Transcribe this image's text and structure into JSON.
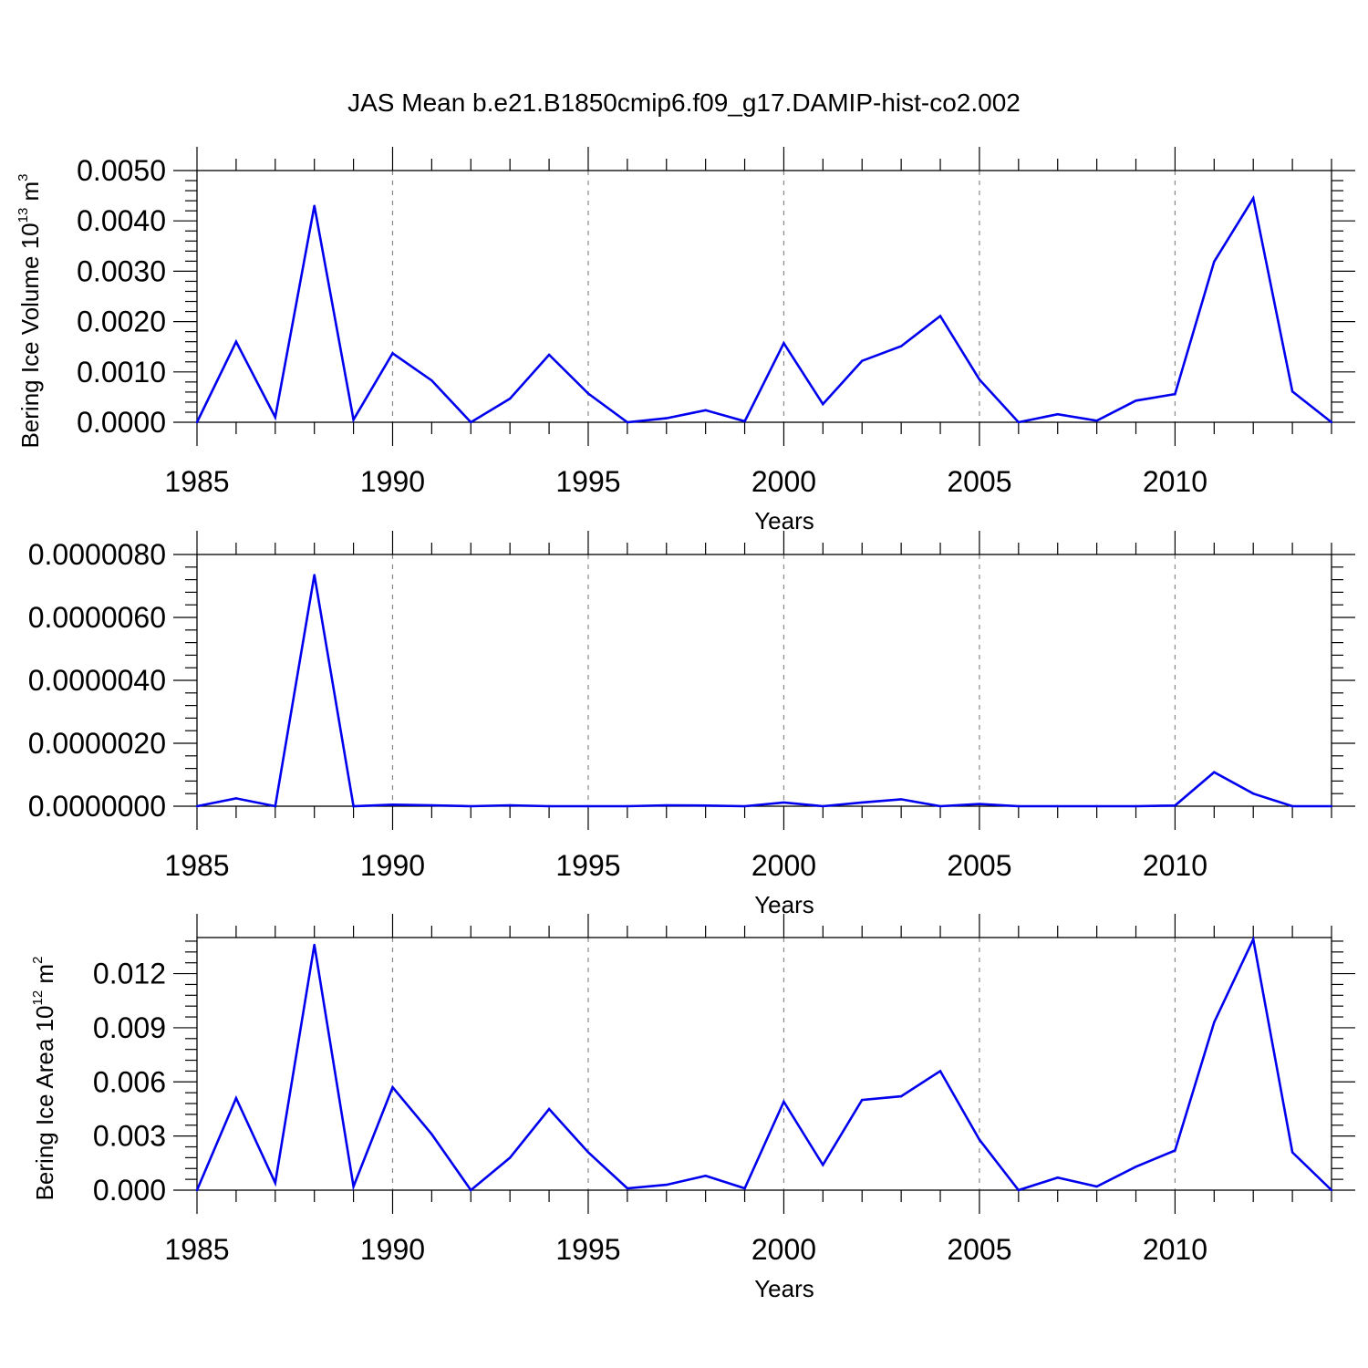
{
  "title": "JAS Mean b.e21.B1850cmip6.f09_g17.DAMIP-hist-co2.002",
  "line_color": "#0000ee",
  "chart_data": [
    {
      "type": "line",
      "xlabel": "Years",
      "ylabel": {
        "prefix": "Bering Ice Volume 10",
        "sup": "13",
        "unit": " m",
        "unit_sup": "3"
      },
      "x": [
        1985,
        1986,
        1987,
        1988,
        1989,
        1990,
        1991,
        1992,
        1993,
        1994,
        1995,
        1996,
        1997,
        1998,
        1999,
        2000,
        2001,
        2002,
        2003,
        2004,
        2005,
        2006,
        2007,
        2008,
        2009,
        2010,
        2011,
        2012,
        2013,
        2014
      ],
      "values": [
        0.0,
        0.0016,
        0.0001,
        0.0043,
        5e-05,
        0.00137,
        0.00083,
        0.0,
        0.00047,
        0.00134,
        0.00057,
        0.0,
        8e-05,
        0.00024,
        2e-05,
        0.00157,
        0.00036,
        0.00122,
        0.00151,
        0.00211,
        0.00085,
        0.0,
        0.00016,
        3e-05,
        0.00043,
        0.00056,
        0.00319,
        0.00445,
        0.00061,
        0.0
      ],
      "xlim": [
        1985,
        2014
      ],
      "ylim": [
        0,
        0.005
      ],
      "yticks": [
        0,
        0.001,
        0.002,
        0.003,
        0.004,
        0.005
      ],
      "ytick_labels": [
        "0.0000",
        "0.0010",
        "0.0020",
        "0.0030",
        "0.0040",
        "0.0050"
      ],
      "xticks": [
        1985,
        1990,
        1995,
        2000,
        2005,
        2010
      ],
      "xtick_labels": [
        "1985",
        "1990",
        "1995",
        "2000",
        "2005",
        "2010"
      ],
      "vertical_grid": [
        1990,
        1995,
        2000,
        2005,
        2010
      ]
    },
    {
      "type": "line",
      "xlabel": "Years",
      "ylabel": null,
      "x": [
        1985,
        1986,
        1987,
        1988,
        1989,
        1990,
        1991,
        1992,
        1993,
        1994,
        1995,
        1996,
        1997,
        1998,
        1999,
        2000,
        2001,
        2002,
        2003,
        2004,
        2005,
        2006,
        2007,
        2008,
        2009,
        2010,
        2011,
        2012,
        2013,
        2014
      ],
      "values": [
        0.0,
        2.5e-07,
        0.0,
        7.35e-06,
        0.0,
        5e-08,
        3e-08,
        0.0,
        3e-08,
        0.0,
        0.0,
        0.0,
        3e-08,
        2e-08,
        0.0,
        1.2e-07,
        0.0,
        1.2e-07,
        2.2e-07,
        0.0,
        7e-08,
        0.0,
        0.0,
        0.0,
        0.0,
        2e-08,
        1.08e-06,
        4e-07,
        0.0,
        0.0
      ],
      "xlim": [
        1985,
        2014
      ],
      "ylim": [
        0,
        8e-06
      ],
      "yticks": [
        0,
        2e-06,
        4e-06,
        6e-06,
        8e-06
      ],
      "ytick_labels": [
        "0.0000000",
        "0.0000020",
        "0.0000040",
        "0.0000060",
        "0.0000080"
      ],
      "xticks": [
        1985,
        1990,
        1995,
        2000,
        2005,
        2010
      ],
      "xtick_labels": [
        "1985",
        "1990",
        "1995",
        "2000",
        "2005",
        "2010"
      ],
      "vertical_grid": [
        1990,
        1995,
        2000,
        2005,
        2010
      ]
    },
    {
      "type": "line",
      "xlabel": "Years",
      "ylabel": {
        "prefix": "Bering Ice Area 10",
        "sup": "12",
        "unit": " m",
        "unit_sup": "2"
      },
      "x": [
        1985,
        1986,
        1987,
        1988,
        1989,
        1990,
        1991,
        1992,
        1993,
        1994,
        1995,
        1996,
        1997,
        1998,
        1999,
        2000,
        2001,
        2002,
        2003,
        2004,
        2005,
        2006,
        2007,
        2008,
        2009,
        2010,
        2011,
        2012,
        2013,
        2014
      ],
      "values": [
        0.0,
        0.0051,
        0.0004,
        0.0136,
        0.0002,
        0.0057,
        0.0031,
        0.0,
        0.0018,
        0.0045,
        0.0021,
        0.0001,
        0.0003,
        0.0008,
        0.0001,
        0.0049,
        0.0014,
        0.005,
        0.0052,
        0.0066,
        0.0028,
        0.0,
        0.0007,
        0.0002,
        0.0013,
        0.0022,
        0.0093,
        0.0139,
        0.0021,
        0.0
      ],
      "xlim": [
        1985,
        2014
      ],
      "ylim": [
        0,
        0.014
      ],
      "yticks": [
        0,
        0.003,
        0.006,
        0.009,
        0.012
      ],
      "ytick_labels": [
        "0.000",
        "0.003",
        "0.006",
        "0.009",
        "0.012"
      ],
      "xticks": [
        1985,
        1990,
        1995,
        2000,
        2005,
        2010
      ],
      "xtick_labels": [
        "1985",
        "1990",
        "1995",
        "2000",
        "2005",
        "2010"
      ],
      "vertical_grid": [
        1990,
        1995,
        2000,
        2005,
        2010
      ]
    }
  ]
}
